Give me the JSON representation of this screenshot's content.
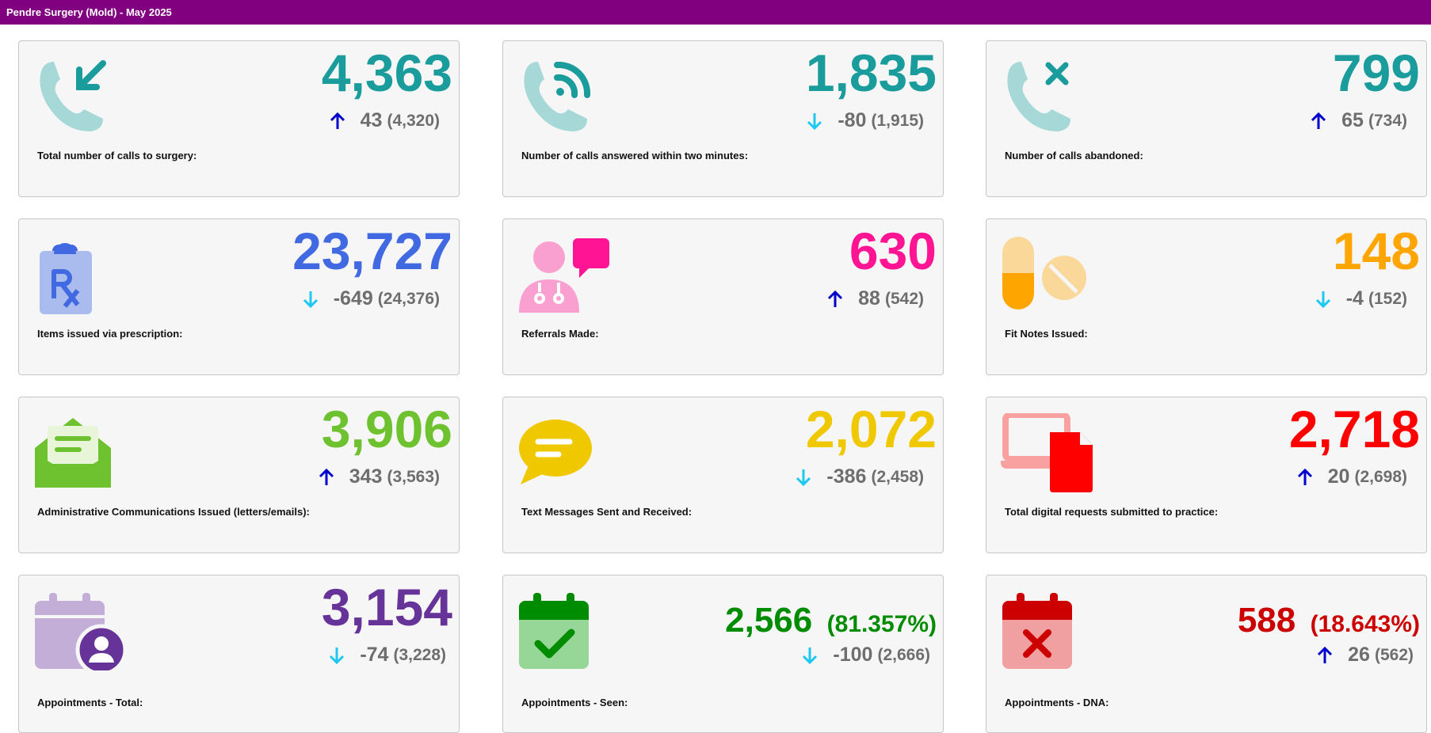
{
  "header": {
    "title": "Pendre Surgery (Mold) - May 2025",
    "bar_color": "#800080"
  },
  "cards": [
    {
      "label": "Total number of calls to surgery:",
      "value": "4,363",
      "pct": "",
      "value_color": "#1a9c9c",
      "direction": "up",
      "delta": "43",
      "previous": "(4,320)",
      "icon": "phone-incoming-icon"
    },
    {
      "label": "Number of calls answered within two minutes:",
      "value": "1,835",
      "pct": "",
      "value_color": "#1a9c9c",
      "direction": "down",
      "delta": "-80",
      "previous": "(1,915)",
      "icon": "phone-answered-icon"
    },
    {
      "label": "Number of calls abandoned:",
      "value": "799",
      "pct": "",
      "value_color": "#1a9c9c",
      "direction": "up",
      "delta": "65",
      "previous": "(734)",
      "icon": "phone-missed-icon"
    },
    {
      "label": "Items issued via prescription:",
      "value": "23,727",
      "pct": "",
      "value_color": "#4169e1",
      "direction": "down",
      "delta": "-649",
      "previous": "(24,376)",
      "icon": "prescription-icon"
    },
    {
      "label": "Referrals Made:",
      "value": "630",
      "pct": "",
      "value_color": "#ff1493",
      "direction": "up",
      "delta": "88",
      "previous": "(542)",
      "icon": "doctor-chat-icon"
    },
    {
      "label": "Fit Notes Issued:",
      "value": "148",
      "pct": "",
      "value_color": "#ffa500",
      "direction": "down",
      "delta": "-4",
      "previous": "(152)",
      "icon": "pills-icon"
    },
    {
      "label": "Administrative Communications Issued (letters/emails):",
      "value": "3,906",
      "pct": "",
      "value_color": "#6ec12f",
      "direction": "up",
      "delta": "343",
      "previous": "(3,563)",
      "icon": "envelope-open-icon"
    },
    {
      "label": "Text Messages Sent and Received:",
      "value": "2,072",
      "pct": "",
      "value_color": "#f0c800",
      "direction": "down",
      "delta": "-386",
      "previous": "(2,458)",
      "icon": "message-icon"
    },
    {
      "label": "Total digital requests submitted to practice:",
      "value": "2,718",
      "pct": "",
      "value_color": "#ff0000",
      "direction": "up",
      "delta": "20",
      "previous": "(2,698)",
      "icon": "devices-icon"
    },
    {
      "label": "Appointments - Total:",
      "value": "3,154",
      "pct": "",
      "value_color": "#663399",
      "direction": "down",
      "delta": "-74",
      "previous": "(3,228)",
      "icon": "calendar-user-icon"
    },
    {
      "label": "Appointments - Seen:",
      "value": "2,566",
      "pct": "(81.357%)",
      "value_color": "#008c00",
      "direction": "down",
      "delta": "-100",
      "previous": "(2,666)",
      "icon": "calendar-check-icon"
    },
    {
      "label": "Appointments - DNA:",
      "value": "588",
      "pct": "(18.643%)",
      "value_color": "#cc0000",
      "direction": "up",
      "delta": "26",
      "previous": "(562)",
      "icon": "calendar-x-icon"
    }
  ],
  "arrow_colors": {
    "up": "#0000cc",
    "down": "#1ec8f0"
  }
}
